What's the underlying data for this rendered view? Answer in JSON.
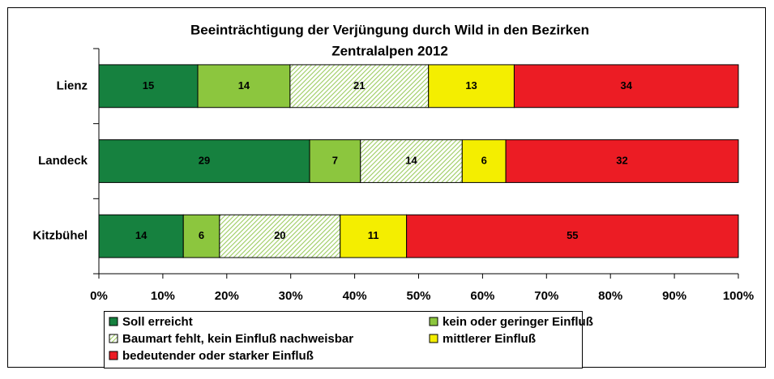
{
  "chart_data": {
    "type": "bar",
    "orientation": "horizontal",
    "stacking": "percent",
    "title": [
      "Beeinträchtigung der Verjüngung durch Wild in den Bezirken",
      "Zentralalpen 2012"
    ],
    "categories": [
      "Lienz",
      "Landeck",
      "Kitzbühel"
    ],
    "series": [
      {
        "name": "Soll erreicht",
        "color": "#16813f",
        "values": [
          15,
          29,
          14
        ]
      },
      {
        "name": "kein oder geringer Einfluß",
        "color": "#8cc63e",
        "values": [
          14,
          7,
          6
        ]
      },
      {
        "name": "Baumart fehlt, kein Einfluß nachweisbar",
        "color": "#9ccc60",
        "pattern": "hatch",
        "values": [
          21,
          14,
          20
        ]
      },
      {
        "name": "mittlerer Einfluß",
        "color": "#f4ee00",
        "values": [
          13,
          6,
          11
        ]
      },
      {
        "name": "bedeutender oder starker Einfluß",
        "color": "#ec1c24",
        "values": [
          34,
          32,
          55
        ]
      }
    ],
    "xlim": [
      0,
      100
    ],
    "xticks": [
      {
        "value": 0,
        "label": "0%"
      },
      {
        "value": 10,
        "label": "10%"
      },
      {
        "value": 20,
        "label": "20%"
      },
      {
        "value": 30,
        "label": "30%"
      },
      {
        "value": 40,
        "label": "40%"
      },
      {
        "value": 50,
        "label": "50%"
      },
      {
        "value": 60,
        "label": "60%"
      },
      {
        "value": 70,
        "label": "70%"
      },
      {
        "value": 80,
        "label": "80%"
      },
      {
        "value": 90,
        "label": "90%"
      },
      {
        "value": 100,
        "label": "100%"
      }
    ],
    "grid": false,
    "legend": "bottom"
  }
}
